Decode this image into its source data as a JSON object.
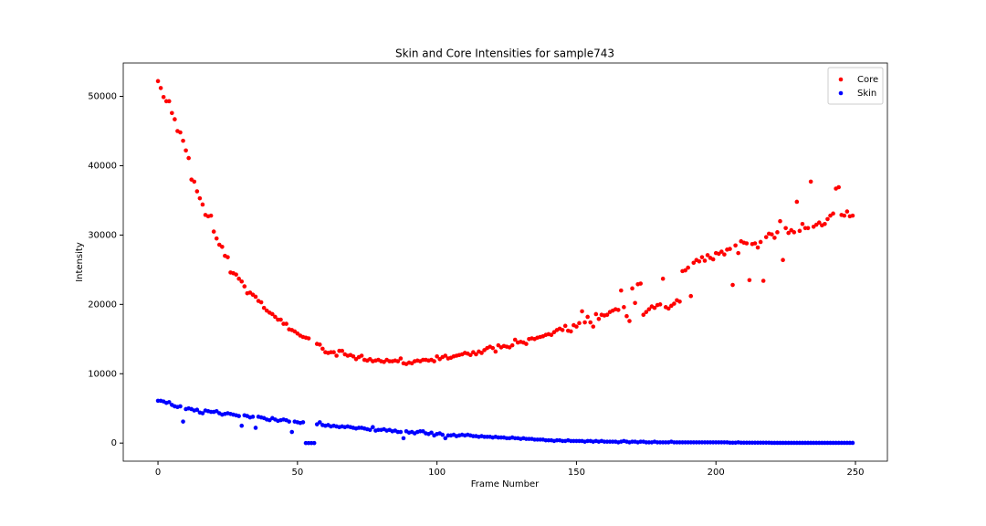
{
  "chart_data": {
    "type": "scatter",
    "title": "Skin and Core Intensities for sample743",
    "xlabel": "Frame Number",
    "ylabel": "Intensity",
    "xlim": [
      -12.45,
      261.45
    ],
    "ylim": [
      -2610,
      54810
    ],
    "xticks": [
      0,
      50,
      100,
      150,
      200,
      250
    ],
    "yticks": [
      0,
      10000,
      20000,
      30000,
      40000,
      50000
    ],
    "legend": "upper right",
    "x": [
      0,
      1,
      2,
      3,
      4,
      5,
      6,
      7,
      8,
      9,
      10,
      11,
      12,
      13,
      14,
      15,
      16,
      17,
      18,
      19,
      20,
      21,
      22,
      23,
      24,
      25,
      26,
      27,
      28,
      29,
      30,
      31,
      32,
      33,
      34,
      35,
      36,
      37,
      38,
      39,
      40,
      41,
      42,
      43,
      44,
      45,
      46,
      47,
      48,
      49,
      50,
      51,
      52,
      53,
      54,
      55,
      56,
      57,
      58,
      59,
      60,
      61,
      62,
      63,
      64,
      65,
      66,
      67,
      68,
      69,
      70,
      71,
      72,
      73,
      74,
      75,
      76,
      77,
      78,
      79,
      80,
      81,
      82,
      83,
      84,
      85,
      86,
      87,
      88,
      89,
      90,
      91,
      92,
      93,
      94,
      95,
      96,
      97,
      98,
      99,
      100,
      101,
      102,
      103,
      104,
      105,
      106,
      107,
      108,
      109,
      110,
      111,
      112,
      113,
      114,
      115,
      116,
      117,
      118,
      119,
      120,
      121,
      122,
      123,
      124,
      125,
      126,
      127,
      128,
      129,
      130,
      131,
      132,
      133,
      134,
      135,
      136,
      137,
      138,
      139,
      140,
      141,
      142,
      143,
      144,
      145,
      146,
      147,
      148,
      149,
      150,
      151,
      152,
      153,
      154,
      155,
      156,
      157,
      158,
      159,
      160,
      161,
      162,
      163,
      164,
      165,
      166,
      167,
      168,
      169,
      170,
      171,
      172,
      173,
      174,
      175,
      176,
      177,
      178,
      179,
      180,
      181,
      182,
      183,
      184,
      185,
      186,
      187,
      188,
      189,
      190,
      191,
      192,
      193,
      194,
      195,
      196,
      197,
      198,
      199,
      200,
      201,
      202,
      203,
      204,
      205,
      206,
      207,
      208,
      209,
      210,
      211,
      212,
      213,
      214,
      215,
      216,
      217,
      218,
      219,
      220,
      221,
      222,
      223,
      224,
      225,
      226,
      227,
      228,
      229,
      230,
      231,
      232,
      233,
      234,
      235,
      236,
      237,
      238,
      239,
      240,
      241,
      242,
      243,
      244,
      245,
      246,
      247,
      248,
      249
    ],
    "series": [
      {
        "name": "Core",
        "color": "#ff0000",
        "values": [
          52200,
          51200,
          49900,
          49300,
          49300,
          47600,
          46700,
          45000,
          44800,
          43600,
          42200,
          41100,
          38000,
          37700,
          36300,
          35300,
          34400,
          32900,
          32700,
          32800,
          30500,
          29500,
          28600,
          28300,
          27000,
          26800,
          24600,
          24500,
          24300,
          23700,
          23300,
          22600,
          21600,
          21700,
          21400,
          21100,
          20500,
          20300,
          19500,
          19100,
          18800,
          18600,
          18200,
          17800,
          17800,
          17200,
          17200,
          16400,
          16300,
          16100,
          15800,
          15500,
          15300,
          15200,
          15100,
          null,
          null,
          14300,
          14200,
          13600,
          13100,
          13000,
          13100,
          13100,
          12600,
          13300,
          13300,
          12800,
          12600,
          12700,
          12500,
          12100,
          12400,
          12600,
          12000,
          11900,
          12100,
          11800,
          11900,
          12000,
          11800,
          11700,
          12000,
          11800,
          11800,
          11900,
          11800,
          12200,
          11500,
          11400,
          11600,
          11500,
          11800,
          11900,
          11800,
          12000,
          12000,
          11900,
          12000,
          11800,
          12500,
          12100,
          12400,
          12600,
          12200,
          12300,
          12500,
          12600,
          12700,
          12800,
          13000,
          12900,
          12700,
          13100,
          12800,
          13200,
          13000,
          13400,
          13700,
          13900,
          13700,
          13200,
          14100,
          13800,
          14000,
          13900,
          13800,
          14100,
          14900,
          14500,
          14600,
          14500,
          14300,
          15000,
          15100,
          15000,
          15200,
          15300,
          15400,
          15600,
          15700,
          15600,
          16000,
          16300,
          16500,
          16300,
          16900,
          16200,
          16100,
          17000,
          16800,
          17300,
          19000,
          17400,
          18200,
          17400,
          16800,
          18600,
          17900,
          18500,
          18400,
          18500,
          18900,
          19100,
          19300,
          19200,
          22000,
          19600,
          18300,
          17600,
          22300,
          20200,
          22900,
          23000,
          18500,
          18900,
          19300,
          19700,
          19500,
          19900,
          20000,
          23700,
          19600,
          19400,
          19800,
          20100,
          20600,
          20400,
          24800,
          24900,
          25300,
          21200,
          26000,
          26400,
          26200,
          26800,
          26300,
          27100,
          26700,
          26500,
          27400,
          27300,
          27600,
          27200,
          27900,
          28000,
          22800,
          28500,
          27400,
          29100,
          28900,
          28800,
          23500,
          28700,
          28800,
          28200,
          29000,
          23400,
          29700,
          30200,
          30100,
          29600,
          30400,
          32000,
          26400,
          31000,
          30300,
          30700,
          30400,
          34800,
          30600,
          31600,
          31000,
          31000,
          37700,
          31200,
          31500,
          31800,
          31400,
          31600,
          32300,
          32800,
          33100,
          36700,
          36900,
          32900,
          32800,
          33400,
          32700,
          32800
        ]
      },
      {
        "name": "Skin",
        "color": "#0000ff",
        "values": [
          6100,
          6100,
          6000,
          5800,
          5900,
          5500,
          5300,
          5200,
          5300,
          3100,
          4900,
          5000,
          4900,
          4700,
          4800,
          4400,
          4300,
          4700,
          4600,
          4500,
          4500,
          4600,
          4300,
          4100,
          4200,
          4300,
          4200,
          4100,
          4000,
          3900,
          2500,
          4000,
          3900,
          3700,
          3800,
          2200,
          3800,
          3700,
          3600,
          3400,
          3300,
          3600,
          3400,
          3200,
          3300,
          3400,
          3300,
          3100,
          1600,
          3100,
          3000,
          2900,
          3000,
          0,
          0,
          0,
          0,
          2700,
          3000,
          2600,
          2500,
          2600,
          2400,
          2500,
          2400,
          2300,
          2400,
          2300,
          2400,
          2300,
          2200,
          2100,
          2200,
          2200,
          2100,
          2000,
          1900,
          2300,
          1800,
          1900,
          1900,
          2000,
          1800,
          1900,
          1700,
          1800,
          1600,
          1600,
          700,
          1700,
          1500,
          1600,
          1400,
          1600,
          1700,
          1700,
          1400,
          1300,
          1500,
          1100,
          1300,
          1400,
          1200,
          700,
          1100,
          1100,
          1200,
          1000,
          1100,
          1200,
          1100,
          1200,
          1100,
          1000,
          1000,
          900,
          1000,
          900,
          900,
          900,
          800,
          900,
          800,
          800,
          800,
          700,
          700,
          800,
          700,
          700,
          600,
          700,
          600,
          600,
          600,
          500,
          500,
          500,
          500,
          400,
          400,
          400,
          300,
          400,
          400,
          300,
          300,
          400,
          300,
          300,
          300,
          300,
          300,
          200,
          300,
          300,
          200,
          300,
          200,
          300,
          200,
          200,
          200,
          200,
          200,
          100,
          200,
          300,
          200,
          100,
          200,
          200,
          100,
          200,
          200,
          100,
          100,
          100,
          200,
          100,
          100,
          100,
          100,
          100,
          200,
          100,
          100,
          100,
          100,
          100,
          100,
          100,
          100,
          100,
          100,
          100,
          100,
          100,
          100,
          100,
          100,
          100,
          100,
          100,
          100,
          50,
          50,
          50,
          100,
          50,
          50,
          50,
          50,
          50,
          50,
          50,
          50,
          50,
          50,
          50,
          30,
          30,
          30,
          30,
          30,
          30,
          30,
          30,
          30,
          30,
          30,
          30,
          30,
          30,
          30,
          30,
          30,
          30,
          30,
          30,
          30,
          30,
          30,
          30,
          30,
          30,
          30,
          30,
          30,
          30
        ]
      }
    ]
  }
}
